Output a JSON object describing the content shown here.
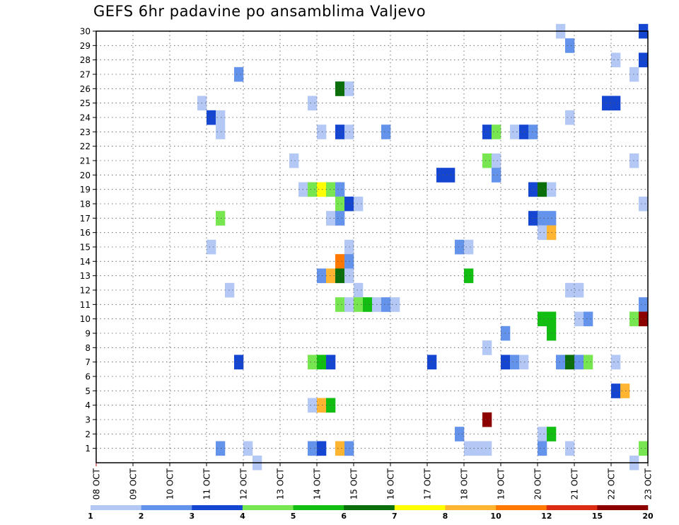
{
  "chart_data": {
    "type": "heatmap",
    "title": "GEFS 6hr padavine po ansamblima Valjevo",
    "x_tick_labels": [
      "08 OCT",
      "09 OCT",
      "10 OCT",
      "11 OCT",
      "12 OCT",
      "13 OCT",
      "14 OCT",
      "15 OCT",
      "16 OCT",
      "17 OCT",
      "18 OCT",
      "19 OCT",
      "20 OCT",
      "21 OCT",
      "22 OCT",
      "23 OCT"
    ],
    "y_tick_labels": [
      "1",
      "2",
      "3",
      "4",
      "5",
      "6",
      "7",
      "8",
      "9",
      "10",
      "11",
      "12",
      "13",
      "14",
      "15",
      "16",
      "17",
      "18",
      "19",
      "20",
      "21",
      "22",
      "23",
      "24",
      "25",
      "26",
      "27",
      "28",
      "29",
      "30"
    ],
    "ylim": [
      0,
      30
    ],
    "grid": true,
    "colorbar": {
      "labels": [
        "1",
        "2",
        "3",
        "4",
        "5",
        "6",
        "7",
        "8",
        "10",
        "12",
        "15",
        "20"
      ],
      "colors": [
        "#b4c8f5",
        "#6493eb",
        "#1446d2",
        "#78e650",
        "#12be12",
        "#0a6e0a",
        "#ffff00",
        "#ffb432",
        "#ff7800",
        "#dc2d14",
        "#8c0000"
      ]
    },
    "cells": [
      {
        "m": 30,
        "t": "2024-10-20 18:00",
        "c": 1
      },
      {
        "m": 30,
        "t": "2024-10-23 00:00",
        "c": 3
      },
      {
        "m": 29,
        "t": "2024-10-21 00:00",
        "c": 2
      },
      {
        "m": 28,
        "t": "2024-10-22 06:00",
        "c": 1
      },
      {
        "m": 28,
        "t": "2024-10-23 00:00",
        "c": 3
      },
      {
        "m": 27,
        "t": "2024-10-12 00:00",
        "c": 2
      },
      {
        "m": 27,
        "t": "2024-10-22 18:00",
        "c": 1
      },
      {
        "m": 26,
        "t": "2024-10-14 18:00",
        "c": 6
      },
      {
        "m": 26,
        "t": "2024-10-15 00:00",
        "c": 1
      },
      {
        "m": 25,
        "t": "2024-10-11 00:00",
        "c": 1
      },
      {
        "m": 25,
        "t": "2024-10-14 00:00",
        "c": 1
      },
      {
        "m": 25,
        "t": "2024-10-22 00:00",
        "c": 3
      },
      {
        "m": 25,
        "t": "2024-10-22 06:00",
        "c": 3
      },
      {
        "m": 24,
        "t": "2024-10-11 06:00",
        "c": 3
      },
      {
        "m": 24,
        "t": "2024-10-11 12:00",
        "c": 1
      },
      {
        "m": 24,
        "t": "2024-10-21 00:00",
        "c": 1
      },
      {
        "m": 23,
        "t": "2024-10-11 12:00",
        "c": 1
      },
      {
        "m": 23,
        "t": "2024-10-14 06:00",
        "c": 1
      },
      {
        "m": 23,
        "t": "2024-10-14 18:00",
        "c": 3
      },
      {
        "m": 23,
        "t": "2024-10-15 00:00",
        "c": 1
      },
      {
        "m": 23,
        "t": "2024-10-16 00:00",
        "c": 2
      },
      {
        "m": 23,
        "t": "2024-10-18 18:00",
        "c": 3
      },
      {
        "m": 23,
        "t": "2024-10-19 00:00",
        "c": 4
      },
      {
        "m": 23,
        "t": "2024-10-19 12:00",
        "c": 1
      },
      {
        "m": 23,
        "t": "2024-10-19 18:00",
        "c": 3
      },
      {
        "m": 23,
        "t": "2024-10-20 00:00",
        "c": 2
      },
      {
        "m": 21,
        "t": "2024-10-13 12:00",
        "c": 1
      },
      {
        "m": 21,
        "t": "2024-10-18 18:00",
        "c": 4
      },
      {
        "m": 21,
        "t": "2024-10-19 00:00",
        "c": 1
      },
      {
        "m": 21,
        "t": "2024-10-22 18:00",
        "c": 1
      },
      {
        "m": 20,
        "t": "2024-10-17 12:00",
        "c": 3
      },
      {
        "m": 20,
        "t": "2024-10-17 18:00",
        "c": 3
      },
      {
        "m": 20,
        "t": "2024-10-19 00:00",
        "c": 2
      },
      {
        "m": 19,
        "t": "2024-10-13 18:00",
        "c": 1
      },
      {
        "m": 19,
        "t": "2024-10-14 00:00",
        "c": 4
      },
      {
        "m": 19,
        "t": "2024-10-14 06:00",
        "c": 7
      },
      {
        "m": 19,
        "t": "2024-10-14 12:00",
        "c": 4
      },
      {
        "m": 19,
        "t": "2024-10-14 18:00",
        "c": 2
      },
      {
        "m": 19,
        "t": "2024-10-20 00:00",
        "c": 3
      },
      {
        "m": 19,
        "t": "2024-10-20 06:00",
        "c": 6
      },
      {
        "m": 19,
        "t": "2024-10-20 12:00",
        "c": 1
      },
      {
        "m": 18,
        "t": "2024-10-14 18:00",
        "c": 4
      },
      {
        "m": 18,
        "t": "2024-10-15 00:00",
        "c": 3
      },
      {
        "m": 18,
        "t": "2024-10-15 06:00",
        "c": 1
      },
      {
        "m": 18,
        "t": "2024-10-23 00:00",
        "c": 1
      },
      {
        "m": 17,
        "t": "2024-10-11 12:00",
        "c": 4
      },
      {
        "m": 17,
        "t": "2024-10-14 12:00",
        "c": 1
      },
      {
        "m": 17,
        "t": "2024-10-14 18:00",
        "c": 2
      },
      {
        "m": 17,
        "t": "2024-10-20 00:00",
        "c": 3
      },
      {
        "m": 17,
        "t": "2024-10-20 06:00",
        "c": 2
      },
      {
        "m": 17,
        "t": "2024-10-20 12:00",
        "c": 2
      },
      {
        "m": 16,
        "t": "2024-10-20 06:00",
        "c": 1
      },
      {
        "m": 16,
        "t": "2024-10-20 12:00",
        "c": 8
      },
      {
        "m": 15,
        "t": "2024-10-11 06:00",
        "c": 1
      },
      {
        "m": 15,
        "t": "2024-10-15 00:00",
        "c": 1
      },
      {
        "m": 15,
        "t": "2024-10-18 00:00",
        "c": 2
      },
      {
        "m": 15,
        "t": "2024-10-18 06:00",
        "c": 1
      },
      {
        "m": 14,
        "t": "2024-10-14 18:00",
        "c": 9
      },
      {
        "m": 14,
        "t": "2024-10-15 00:00",
        "c": 2
      },
      {
        "m": 13,
        "t": "2024-10-14 06:00",
        "c": 2
      },
      {
        "m": 13,
        "t": "2024-10-14 12:00",
        "c": 8
      },
      {
        "m": 13,
        "t": "2024-10-14 18:00",
        "c": 6
      },
      {
        "m": 13,
        "t": "2024-10-15 00:00",
        "c": 1
      },
      {
        "m": 13,
        "t": "2024-10-18 06:00",
        "c": 5
      },
      {
        "m": 12,
        "t": "2024-10-11 18:00",
        "c": 1
      },
      {
        "m": 12,
        "t": "2024-10-15 06:00",
        "c": 1
      },
      {
        "m": 12,
        "t": "2024-10-21 00:00",
        "c": 1
      },
      {
        "m": 12,
        "t": "2024-10-21 06:00",
        "c": 1
      },
      {
        "m": 11,
        "t": "2024-10-14 18:00",
        "c": 4
      },
      {
        "m": 11,
        "t": "2024-10-15 00:00",
        "c": 1
      },
      {
        "m": 11,
        "t": "2024-10-15 06:00",
        "c": 4
      },
      {
        "m": 11,
        "t": "2024-10-15 12:00",
        "c": 5
      },
      {
        "m": 11,
        "t": "2024-10-15 18:00",
        "c": 1
      },
      {
        "m": 11,
        "t": "2024-10-16 00:00",
        "c": 2
      },
      {
        "m": 11,
        "t": "2024-10-16 06:00",
        "c": 1
      },
      {
        "m": 11,
        "t": "2024-10-23 00:00",
        "c": 2
      },
      {
        "m": 10,
        "t": "2024-10-20 06:00",
        "c": 5
      },
      {
        "m": 10,
        "t": "2024-10-20 12:00",
        "c": 5
      },
      {
        "m": 10,
        "t": "2024-10-21 06:00",
        "c": 1
      },
      {
        "m": 10,
        "t": "2024-10-21 12:00",
        "c": 2
      },
      {
        "m": 10,
        "t": "2024-10-22 18:00",
        "c": 4
      },
      {
        "m": 10,
        "t": "2024-10-23 00:00",
        "c": 11
      },
      {
        "m": 9,
        "t": "2024-10-19 06:00",
        "c": 2
      },
      {
        "m": 9,
        "t": "2024-10-20 12:00",
        "c": 5
      },
      {
        "m": 8,
        "t": "2024-10-18 18:00",
        "c": 1
      },
      {
        "m": 7,
        "t": "2024-10-12 00:00",
        "c": 3
      },
      {
        "m": 7,
        "t": "2024-10-14 00:00",
        "c": 4
      },
      {
        "m": 7,
        "t": "2024-10-14 06:00",
        "c": 5
      },
      {
        "m": 7,
        "t": "2024-10-14 12:00",
        "c": 3
      },
      {
        "m": 7,
        "t": "2024-10-17 06:00",
        "c": 3
      },
      {
        "m": 7,
        "t": "2024-10-19 06:00",
        "c": 3
      },
      {
        "m": 7,
        "t": "2024-10-19 12:00",
        "c": 2
      },
      {
        "m": 7,
        "t": "2024-10-19 18:00",
        "c": 1
      },
      {
        "m": 7,
        "t": "2024-10-20 18:00",
        "c": 2
      },
      {
        "m": 7,
        "t": "2024-10-21 00:00",
        "c": 6
      },
      {
        "m": 7,
        "t": "2024-10-21 06:00",
        "c": 2
      },
      {
        "m": 7,
        "t": "2024-10-21 12:00",
        "c": 4
      },
      {
        "m": 7,
        "t": "2024-10-22 06:00",
        "c": 1
      },
      {
        "m": 5,
        "t": "2024-10-22 06:00",
        "c": 3
      },
      {
        "m": 5,
        "t": "2024-10-22 12:00",
        "c": 8
      },
      {
        "m": 4,
        "t": "2024-10-14 00:00",
        "c": 1
      },
      {
        "m": 4,
        "t": "2024-10-14 06:00",
        "c": 8
      },
      {
        "m": 4,
        "t": "2024-10-14 12:00",
        "c": 5
      },
      {
        "m": 3,
        "t": "2024-10-18 18:00",
        "c": 11
      },
      {
        "m": 2,
        "t": "2024-10-18 00:00",
        "c": 2
      },
      {
        "m": 2,
        "t": "2024-10-20 06:00",
        "c": 1
      },
      {
        "m": 2,
        "t": "2024-10-20 12:00",
        "c": 5
      },
      {
        "m": 1,
        "t": "2024-10-11 12:00",
        "c": 2
      },
      {
        "m": 1,
        "t": "2024-10-12 06:00",
        "c": 1
      },
      {
        "m": 1,
        "t": "2024-10-14 00:00",
        "c": 2
      },
      {
        "m": 1,
        "t": "2024-10-14 06:00",
        "c": 3
      },
      {
        "m": 1,
        "t": "2024-10-14 18:00",
        "c": 8
      },
      {
        "m": 1,
        "t": "2024-10-15 00:00",
        "c": 2
      },
      {
        "m": 1,
        "t": "2024-10-18 06:00",
        "c": 1
      },
      {
        "m": 1,
        "t": "2024-10-18 12:00",
        "c": 1
      },
      {
        "m": 1,
        "t": "2024-10-18 18:00",
        "c": 1
      },
      {
        "m": 1,
        "t": "2024-10-20 06:00",
        "c": 2
      },
      {
        "m": 1,
        "t": "2024-10-21 00:00",
        "c": 1
      },
      {
        "m": 1,
        "t": "2024-10-23 00:00",
        "c": 4
      },
      {
        "m": 0,
        "t": "2024-10-12 12:00",
        "c": 1
      },
      {
        "m": 0,
        "t": "2024-10-22 18:00",
        "c": 1
      }
    ]
  }
}
